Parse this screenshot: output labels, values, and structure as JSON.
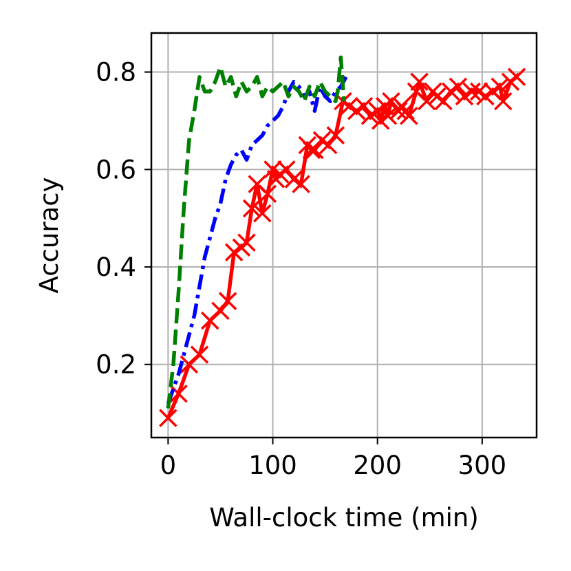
{
  "chart_data": {
    "type": "line",
    "title": "",
    "xlabel": "Wall-clock time (min)",
    "ylabel": "Accuracy",
    "xlim": [
      -16,
      352
    ],
    "ylim": [
      0.05,
      0.88
    ],
    "xticks": [
      0,
      100,
      200,
      300
    ],
    "yticks": [
      0.2,
      0.4,
      0.6,
      0.8
    ],
    "xtick_labels": [
      "0",
      "100",
      "200",
      "300"
    ],
    "ytick_labels": [
      "0.2",
      "0.4",
      "0.6",
      "0.8"
    ],
    "grid": true,
    "legend": "none",
    "series": [
      {
        "color": "#ff0000",
        "line_style": "solid",
        "marker": "x",
        "x": [
          0,
          10,
          20,
          30,
          40,
          50,
          57,
          63,
          70,
          75,
          80,
          85,
          90,
          95,
          100,
          103,
          107,
          113,
          120,
          127,
          133,
          137,
          140,
          147,
          153,
          160,
          167,
          173,
          180,
          187,
          193,
          200,
          203,
          207,
          210,
          213,
          220,
          223,
          227,
          230,
          237,
          240,
          247,
          253,
          257,
          263,
          270,
          277,
          283,
          290,
          297,
          303,
          310,
          317,
          320,
          327,
          333
        ],
        "y": [
          0.09,
          0.14,
          0.2,
          0.22,
          0.29,
          0.31,
          0.33,
          0.43,
          0.44,
          0.45,
          0.52,
          0.57,
          0.51,
          0.55,
          0.6,
          0.58,
          0.59,
          0.6,
          0.58,
          0.57,
          0.65,
          0.64,
          0.64,
          0.66,
          0.65,
          0.67,
          0.74,
          0.73,
          0.72,
          0.73,
          0.71,
          0.72,
          0.7,
          0.73,
          0.71,
          0.74,
          0.72,
          0.73,
          0.72,
          0.71,
          0.76,
          0.78,
          0.74,
          0.76,
          0.75,
          0.74,
          0.76,
          0.77,
          0.75,
          0.76,
          0.76,
          0.75,
          0.76,
          0.77,
          0.74,
          0.78,
          0.79
        ]
      },
      {
        "color": "#0000ff",
        "line_style": "dashdot",
        "marker": "none",
        "x": [
          0,
          5,
          10,
          15,
          20,
          25,
          30,
          35,
          40,
          45,
          50,
          55,
          60,
          65,
          70,
          75,
          80,
          85,
          90,
          95,
          100,
          105,
          110,
          115,
          120,
          125,
          130,
          135,
          140,
          145,
          150,
          155,
          160,
          165,
          170
        ],
        "y": [
          0.12,
          0.15,
          0.18,
          0.22,
          0.26,
          0.3,
          0.36,
          0.42,
          0.46,
          0.5,
          0.53,
          0.58,
          0.61,
          0.63,
          0.64,
          0.62,
          0.65,
          0.66,
          0.67,
          0.69,
          0.7,
          0.71,
          0.73,
          0.76,
          0.78,
          0.77,
          0.75,
          0.76,
          0.72,
          0.77,
          0.75,
          0.74,
          0.76,
          0.77,
          0.79
        ]
      },
      {
        "color": "#008000",
        "line_style": "dashed",
        "marker": "none",
        "x": [
          0,
          5,
          10,
          15,
          20,
          25,
          30,
          35,
          40,
          45,
          50,
          55,
          60,
          65,
          70,
          75,
          80,
          85,
          90,
          95,
          100,
          105,
          110,
          115,
          120,
          125,
          130,
          135,
          140,
          145,
          150,
          155,
          160,
          162,
          165,
          168
        ],
        "y": [
          0.11,
          0.2,
          0.35,
          0.52,
          0.66,
          0.72,
          0.79,
          0.76,
          0.76,
          0.78,
          0.81,
          0.77,
          0.79,
          0.75,
          0.78,
          0.76,
          0.77,
          0.79,
          0.75,
          0.77,
          0.76,
          0.77,
          0.78,
          0.75,
          0.77,
          0.76,
          0.74,
          0.77,
          0.75,
          0.78,
          0.76,
          0.75,
          0.74,
          0.76,
          0.83,
          0.74
        ]
      }
    ]
  }
}
